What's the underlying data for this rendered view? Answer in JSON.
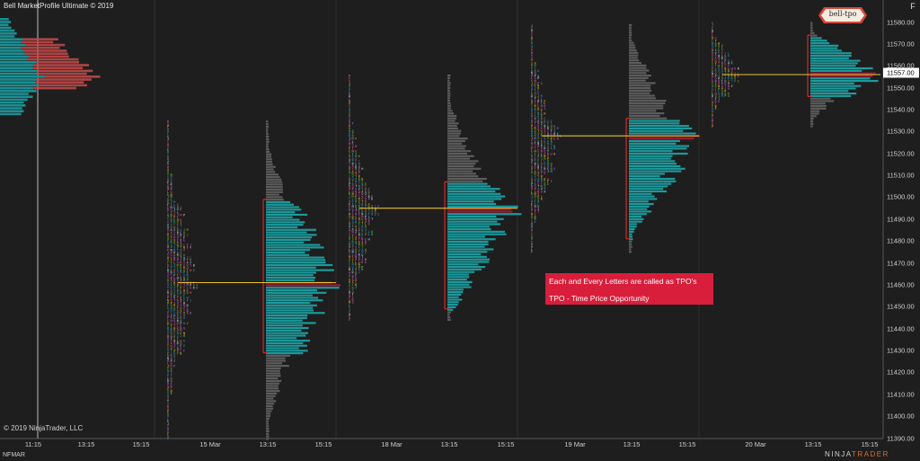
{
  "window": {
    "title": "Bell MarketProfile Ultimate © 2019",
    "copyright": "© 2019 NinjaTrader, LLC",
    "symbol": "NFMAR",
    "f_button": "F"
  },
  "logo": {
    "text": "bell-tpo"
  },
  "brand": {
    "prefix": "NINJA",
    "suffix": "TRADER"
  },
  "annotation": {
    "line1": "Each and Every Letters are called as TPO's",
    "line2": "TPO - Time Price Opportunity"
  },
  "colors": {
    "background": "#1e1e1e",
    "teal": "#1b9a9c",
    "gray_profile": "#5c5c5c",
    "poc": "#9c1b3a",
    "poc_line": "#e8c22a",
    "value_area": "#d42a2a",
    "annotation_bg": "#d81e3a"
  },
  "chart_data": {
    "type": "market_profile",
    "price_axis": {
      "labels": [
        "11580.00",
        "11570.00",
        "11560.00",
        "11550.00",
        "11540.00",
        "11530.00",
        "11520.00",
        "11510.00",
        "11500.00",
        "11490.00",
        "11480.00",
        "11470.00",
        "11460.00",
        "11450.00",
        "11440.00",
        "11430.00",
        "11420.00",
        "11410.00",
        "11400.00",
        "11390.00"
      ],
      "current_price": "11557.00",
      "range": [
        11390,
        11580
      ]
    },
    "time_axis": {
      "labels": [
        "11:15",
        "13:15",
        "15:15",
        "15 Mar",
        "13:15",
        "15:15",
        "18 Mar",
        "13:15",
        "15:15",
        "19 Mar",
        "13:15",
        "15:15",
        "20 Mar",
        "13:15",
        "15:15"
      ]
    },
    "sessions": [
      {
        "label": "15 Mar",
        "poc": 11461,
        "va_high": 11499,
        "va_low": 11429,
        "low": 11390,
        "high": 11535
      },
      {
        "label": "18 Mar",
        "poc": 11495,
        "va_high": 11507,
        "va_low": 11449,
        "low": 11444,
        "high": 11556
      },
      {
        "label": "19 Mar",
        "poc": 11528,
        "va_high": 11536,
        "va_low": 11481,
        "low": 11475,
        "high": 11579
      },
      {
        "label": "20 Mar",
        "poc": 11556,
        "va_high": 11574,
        "va_low": 11546,
        "low": 11532,
        "high": 11580
      }
    ]
  }
}
